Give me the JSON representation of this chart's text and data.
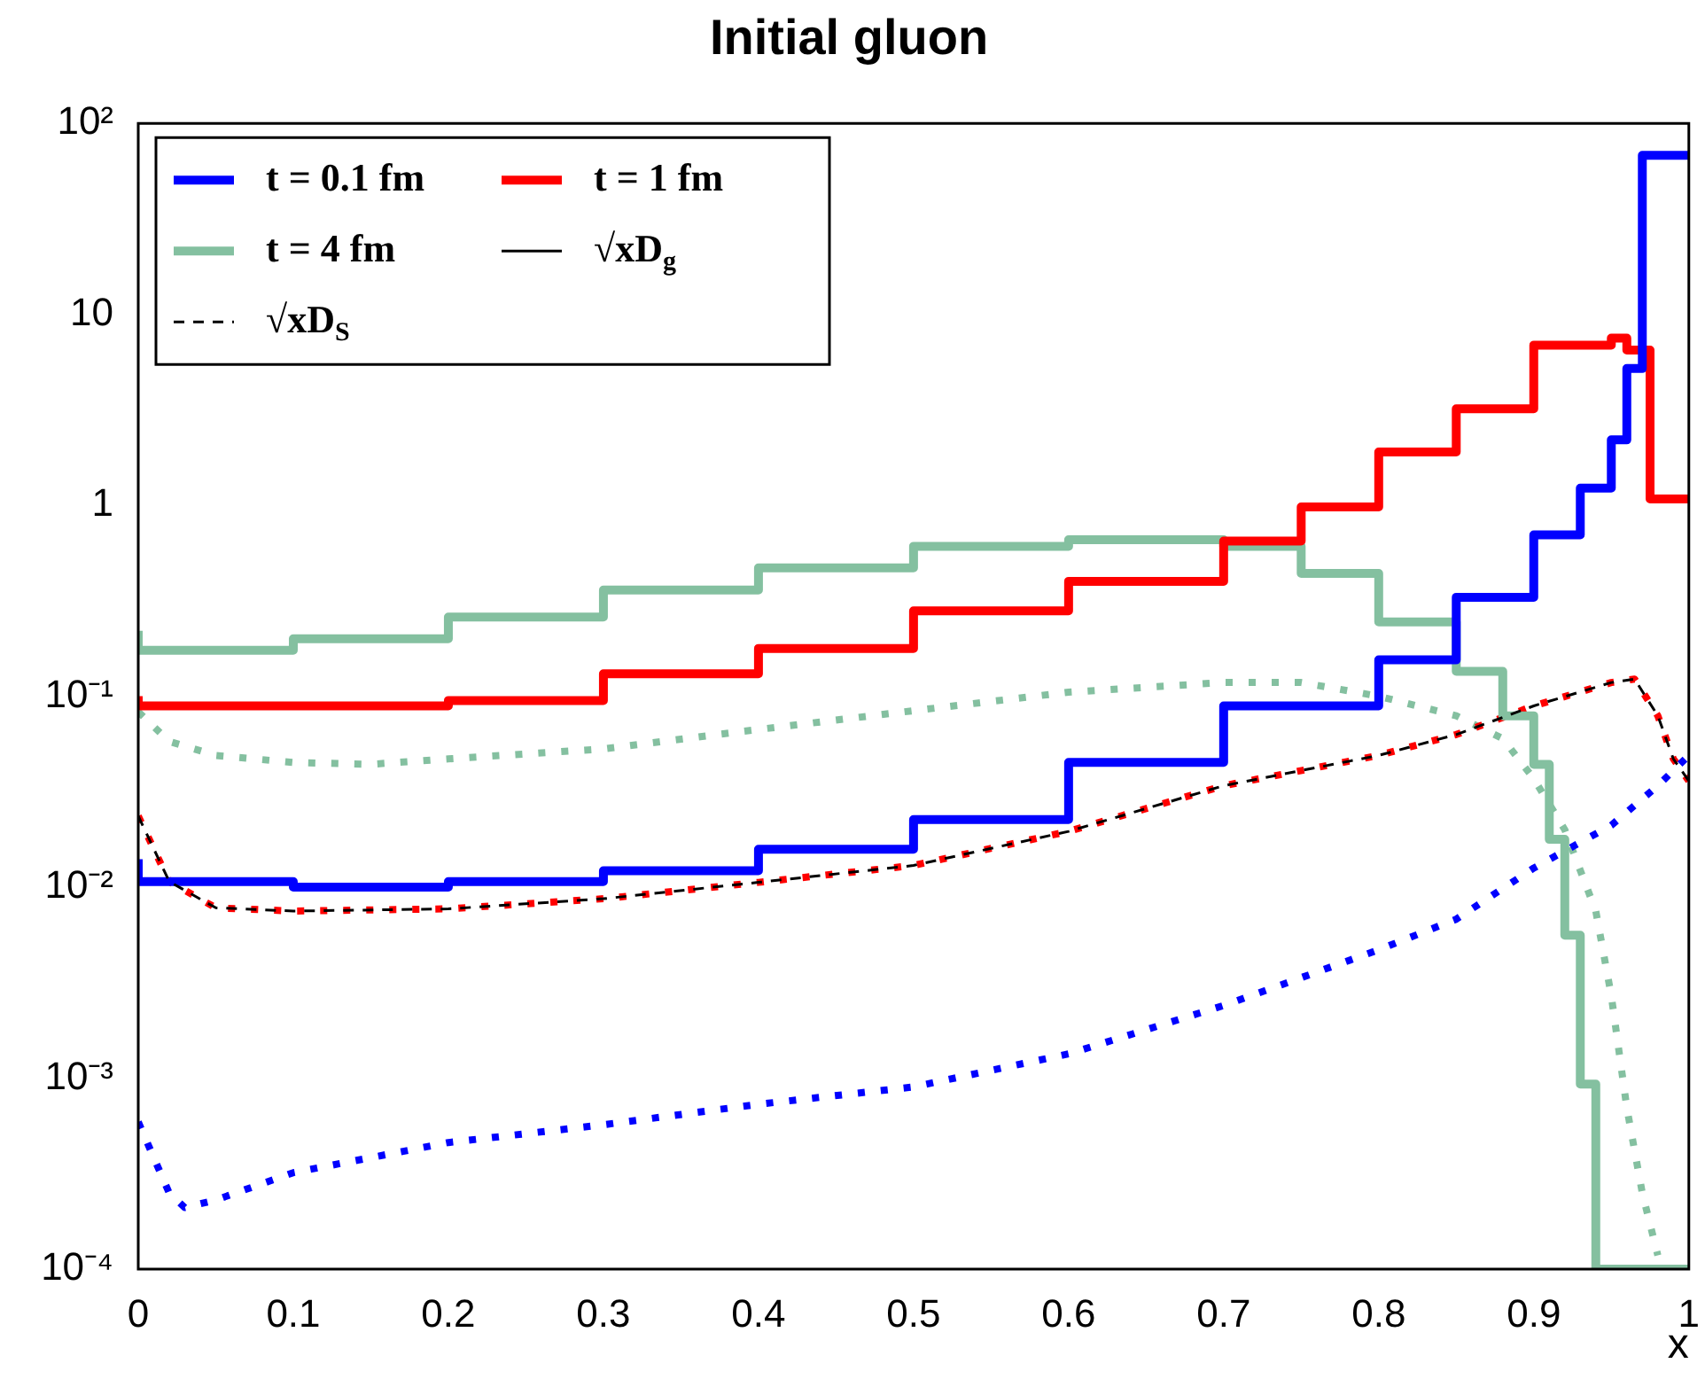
{
  "chart_data": {
    "type": "step",
    "title": "Initial gluon",
    "xlabel": "x",
    "xlim": [
      0,
      1
    ],
    "xticks": [
      0,
      0.1,
      0.2,
      0.3,
      0.4,
      0.5,
      0.6,
      0.7,
      0.8,
      0.9,
      1
    ],
    "ylim": [
      0.0001,
      100
    ],
    "yticks": [
      {
        "value": 0.0001,
        "label": "10⁻⁴"
      },
      {
        "value": 0.001,
        "label": "10⁻³"
      },
      {
        "value": 0.01,
        "label": "10⁻²"
      },
      {
        "value": 0.1,
        "label": "10⁻¹"
      },
      1,
      10,
      {
        "value": 100,
        "label": "10²"
      }
    ],
    "log": "y",
    "grid": false,
    "legend": "top left",
    "marker": "none",
    "series": [
      {
        "name": "t = 0.1 fm",
        "color": "#0000ff",
        "line_style": "solid",
        "x": [
          0,
          0.015,
          0.1,
          0.2,
          0.3,
          0.4,
          0.5,
          0.6,
          0.7,
          0.8,
          0.85,
          0.9,
          0.93,
          0.95,
          0.96,
          0.97,
          0.985,
          1
        ],
        "values": [
          0.014,
          0.0107,
          0.0107,
          0.01,
          0.0107,
          0.0122,
          0.0158,
          0.0226,
          0.045,
          0.089,
          0.155,
          0.33,
          0.7,
          1.23,
          2.2,
          5.2,
          68,
          68
        ]
      },
      {
        "name": "t = 1 fm",
        "color": "#ff0000",
        "line_style": "solid",
        "x": [
          0,
          0.015,
          0.2,
          0.3,
          0.4,
          0.5,
          0.6,
          0.7,
          0.75,
          0.8,
          0.85,
          0.9,
          0.95,
          0.96,
          0.975,
          0.985,
          1
        ],
        "values": [
          0.1,
          0.089,
          0.089,
          0.095,
          0.131,
          0.178,
          0.28,
          0.4,
          0.65,
          0.98,
          1.9,
          3.2,
          6.9,
          7.5,
          6.5,
          1.08,
          1.08
        ]
      },
      {
        "name": "t = 4 fm",
        "color": "#84c0a0",
        "line_style": "solid",
        "x": [
          0,
          0.015,
          0.1,
          0.2,
          0.3,
          0.4,
          0.5,
          0.6,
          0.7,
          0.75,
          0.8,
          0.85,
          0.88,
          0.9,
          0.91,
          0.92,
          0.93,
          0.94,
          0.95,
          1
        ],
        "values": [
          0.22,
          0.174,
          0.174,
          0.2,
          0.26,
          0.36,
          0.47,
          0.61,
          0.66,
          0.61,
          0.44,
          0.245,
          0.135,
          0.079,
          0.044,
          0.0178,
          0.0056,
          0.00093,
          0.0001,
          0.0001
        ]
      },
      {
        "name": "√xD$_{g}$",
        "color": "#000000",
        "type": "line",
        "line_style": "solid"
      },
      {
        "name": "√xD$_{S}$",
        "color": "#000000",
        "type": "line",
        "line_style": "dashed",
        "x": [
          0,
          0.02,
          0.05,
          0.1,
          0.2,
          0.3,
          0.4,
          0.5,
          0.6,
          0.7,
          0.8,
          0.85,
          0.9,
          0.95,
          0.965,
          0.98,
          0.99,
          1
        ],
        "values": [
          0.0236,
          0.0107,
          0.0078,
          0.0075,
          0.0077,
          0.0087,
          0.0106,
          0.013,
          0.0196,
          0.034,
          0.049,
          0.063,
          0.089,
          0.118,
          0.123,
          0.079,
          0.047,
          0.036
        ]
      },
      {
        "color": "#0000ff",
        "type": "line",
        "line_style": "dotted",
        "x": [
          0,
          0.02,
          0.03,
          0.05,
          0.1,
          0.2,
          0.3,
          0.4,
          0.5,
          0.6,
          0.7,
          0.8,
          0.85,
          0.9,
          0.95,
          0.98,
          1
        ],
        "values": [
          0.00059,
          0.00025,
          0.00021,
          0.00023,
          0.00032,
          0.00046,
          0.00057,
          0.00073,
          0.0009,
          0.00134,
          0.0024,
          0.0047,
          0.0068,
          0.0126,
          0.0211,
          0.034,
          0.049
        ]
      },
      {
        "color": "#ff0000",
        "type": "line",
        "line_style": "dotted",
        "x": [
          0,
          0.02,
          0.05,
          0.1,
          0.2,
          0.3,
          0.4,
          0.5,
          0.6,
          0.7,
          0.8,
          0.85,
          0.9,
          0.95,
          0.965,
          0.98,
          0.99,
          1
        ],
        "values": [
          0.0236,
          0.0107,
          0.0078,
          0.0075,
          0.0077,
          0.0087,
          0.0106,
          0.013,
          0.0196,
          0.034,
          0.049,
          0.063,
          0.089,
          0.118,
          0.123,
          0.079,
          0.047,
          0.036
        ]
      },
      {
        "color": "#84c0a0",
        "type": "line",
        "line_style": "dotted",
        "x": [
          0,
          0.02,
          0.05,
          0.1,
          0.15,
          0.2,
          0.3,
          0.4,
          0.5,
          0.6,
          0.7,
          0.75,
          0.8,
          0.85,
          0.88,
          0.9,
          0.92,
          0.94,
          0.95,
          0.96,
          0.97,
          0.98
        ],
        "values": [
          0.083,
          0.058,
          0.049,
          0.045,
          0.044,
          0.047,
          0.053,
          0.067,
          0.084,
          0.105,
          0.118,
          0.118,
          0.1,
          0.079,
          0.06,
          0.037,
          0.02,
          0.0075,
          0.0027,
          0.0007,
          0.00025,
          0.000118
        ]
      }
    ]
  }
}
